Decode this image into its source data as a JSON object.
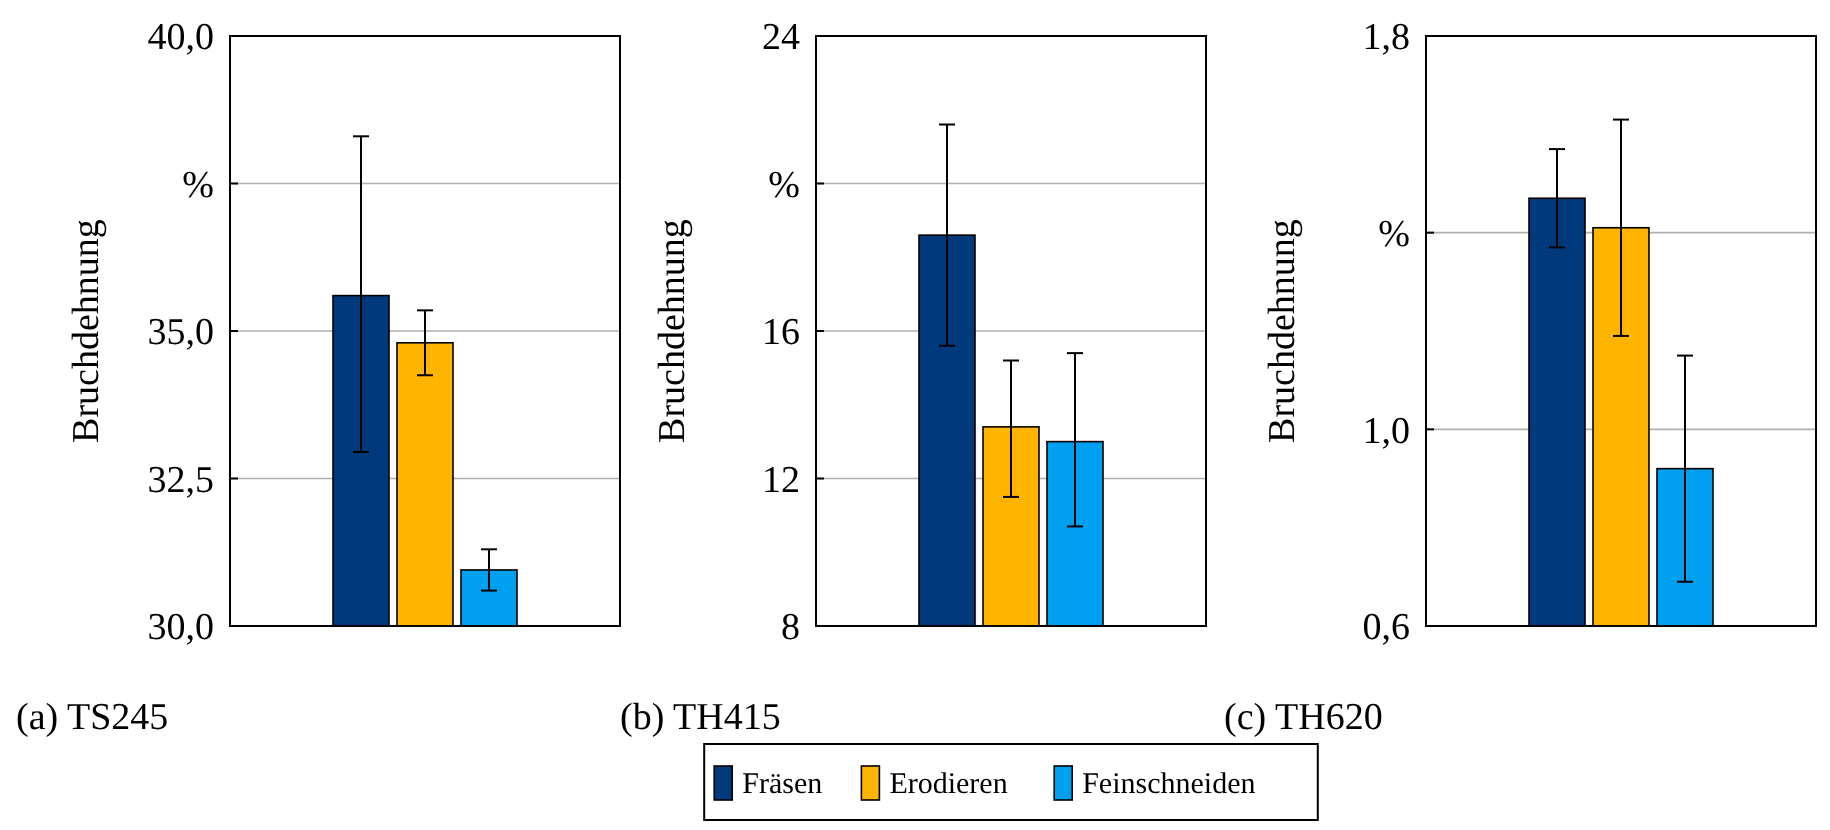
{
  "chart_data": [
    {
      "type": "bar",
      "title": "(a) TS245",
      "ylabel": "Bruchdehnung",
      "categories": [
        null
      ],
      "ylim": [
        30,
        40
      ],
      "yticks": [
        {
          "value": 30,
          "label": "30,0"
        },
        {
          "value": 32.5,
          "label": "32,5"
        },
        {
          "value": 35,
          "label": "35,0"
        },
        {
          "value": 37.5,
          "label": "%"
        },
        {
          "value": 40,
          "label": "40,0"
        }
      ],
      "grid": "y",
      "legend": false,
      "series": [
        {
          "color": "#003a7d",
          "values": [
            35.6
          ],
          "errors": [
            [
              32.95,
              38.3
            ]
          ]
        },
        {
          "color": "#ffb400",
          "values": [
            34.8
          ],
          "errors": [
            [
              34.25,
              35.35
            ]
          ]
        },
        {
          "color": "#00a0f0",
          "values": [
            30.95
          ],
          "errors": [
            [
              30.6,
              31.3
            ]
          ]
        }
      ]
    },
    {
      "type": "bar",
      "title": "(b) TH415",
      "ylabel": "Bruchdehnung",
      "categories": [
        null
      ],
      "ylim": [
        8,
        24
      ],
      "yticks": [
        8,
        12,
        16,
        {
          "value": 20,
          "label": "%"
        },
        24
      ],
      "grid": "y",
      "legend": "bottom",
      "series": [
        {
          "name": "Fräsen",
          "color": "#003a7d",
          "values": [
            18.6
          ],
          "errors": [
            [
              15.6,
              21.6
            ]
          ]
        },
        {
          "name": "Erodieren",
          "color": "#ffb400",
          "values": [
            13.4
          ],
          "errors": [
            [
              11.5,
              15.2
            ]
          ]
        },
        {
          "name": "Feinschneiden",
          "color": "#00a0f0",
          "values": [
            13.0
          ],
          "errors": [
            [
              10.7,
              15.4
            ]
          ]
        }
      ]
    },
    {
      "type": "bar",
      "title": "(c) TH620",
      "ylabel": "Bruchdehnung",
      "categories": [
        null
      ],
      "ylim": [
        0.6,
        1.8
      ],
      "yticks": [
        {
          "value": 0.6,
          "label": "0,6"
        },
        {
          "value": 1.0,
          "label": "1,0"
        },
        {
          "value": 1.4,
          "label": "%"
        },
        {
          "value": 1.8,
          "label": "1,8"
        }
      ],
      "grid": "y",
      "legend": false,
      "series": [
        {
          "color": "#003a7d",
          "values": [
            1.47
          ],
          "errors": [
            [
              1.37,
              1.57
            ]
          ]
        },
        {
          "color": "#ffb400",
          "values": [
            1.41
          ],
          "errors": [
            [
              1.19,
              1.63
            ]
          ]
        },
        {
          "color": "#00a0f0",
          "values": [
            0.92
          ],
          "errors": [
            [
              0.69,
              1.15
            ]
          ]
        }
      ]
    }
  ]
}
